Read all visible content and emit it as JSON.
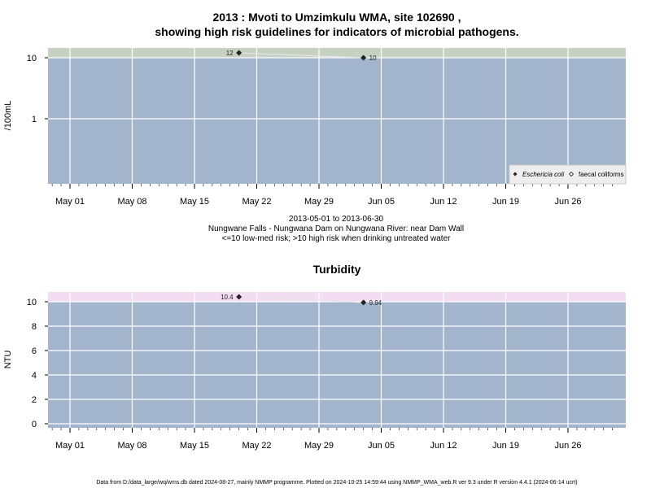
{
  "page": {
    "title_line1": "2013 : Mvoti to Umzimkulu WMA, site 102690 ,",
    "title_line2": "showing high risk guidelines for indicators of microbial pathogens.",
    "subtitle_lines": [
      "2013-05-01 to 2013-06-30",
      "Nungwane Falls - Nungwana Dam on Nungwana River: near Dam Wall",
      "<=10 low-med risk; >10 high risk when drinking untreated water"
    ],
    "footer": "Data from D:/data_large/wq/wms.db dated 2024-08-27, mainly NMMP programme. Plotted on 2024-10-25 14:59:44 using NMMP_WMA_web.R ver 9.3 under R version 4.4.1 (2024-06-14 ucrt)"
  },
  "colors": {
    "panel_bg": "#a3b5cc",
    "grid": "#ffffff",
    "micro_risk_band": "#c6d1c2",
    "turb_risk_band": "#f3ddf3",
    "point": "#222222",
    "line": "#e6e6e6"
  },
  "chart_data": [
    {
      "type": "line",
      "title": "",
      "ylabel": "/100mL",
      "y_scale": "log",
      "x_tick_labels": [
        "May 01",
        "May 08",
        "May 15",
        "May 22",
        "May 29",
        "Jun 05",
        "Jun 12",
        "Jun 19",
        "Jun 26"
      ],
      "x_tick_dates": [
        "2013-05-01",
        "2013-05-08",
        "2013-05-15",
        "2013-05-22",
        "2013-05-29",
        "2013-06-05",
        "2013-06-12",
        "2013-06-19",
        "2013-06-26"
      ],
      "y_tick_labels": [
        "1",
        "10"
      ],
      "y_ticks": [
        1,
        10
      ],
      "risk_threshold": 10,
      "legend_position": "bottom-right",
      "series": [
        {
          "name": "Eschericia coli",
          "marker": "filled-diamond",
          "x": [
            "2013-05-20",
            "2013-06-03"
          ],
          "y": [
            12,
            10
          ],
          "labels": [
            "12",
            "10"
          ]
        },
        {
          "name": "faecal coliforms",
          "marker": "open-diamond",
          "x": [],
          "y": [],
          "labels": []
        }
      ]
    },
    {
      "type": "line",
      "title": "Turbidity",
      "ylabel": "NTU",
      "y_scale": "linear",
      "x_tick_labels": [
        "May 01",
        "May 08",
        "May 15",
        "May 22",
        "May 29",
        "Jun 05",
        "Jun 12",
        "Jun 19",
        "Jun 26"
      ],
      "x_tick_dates": [
        "2013-05-01",
        "2013-05-08",
        "2013-05-15",
        "2013-05-22",
        "2013-05-29",
        "2013-06-05",
        "2013-06-12",
        "2013-06-19",
        "2013-06-26"
      ],
      "y_tick_labels": [
        "0",
        "2",
        "4",
        "6",
        "8",
        "10"
      ],
      "y_ticks": [
        0,
        2,
        4,
        6,
        8,
        10
      ],
      "risk_threshold": 10,
      "series": [
        {
          "marker": "filled-diamond",
          "x": [
            "2013-05-20",
            "2013-06-03"
          ],
          "y": [
            10.4,
            9.94
          ],
          "labels": [
            "10.4",
            "9.94"
          ]
        }
      ]
    }
  ]
}
